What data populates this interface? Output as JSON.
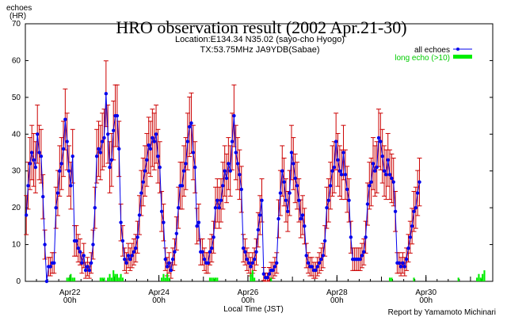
{
  "chart_data": {
    "type": "line",
    "title": "HRO observation result (2002 Apr.21-30)",
    "subtitle_lines": [
      "Location:E134.34 N35.02 (sayo-cho Hyogo)",
      "TX:53.75MHz JA9YDB(Sabae)"
    ],
    "ylabel_lines": [
      "echoes",
      "(HR)"
    ],
    "xlabel": "Local Time (JST)",
    "credit": "Report by Yamamoto Michinari",
    "ylim": [
      0,
      70
    ],
    "yticks": [
      0,
      10,
      20,
      30,
      40,
      50,
      60,
      70
    ],
    "xlim_hours": [
      0,
      252
    ],
    "xticks": [
      {
        "hour": 24,
        "label1": "Apr22",
        "label2": "00h"
      },
      {
        "hour": 72,
        "label1": "Apr24",
        "label2": "00h"
      },
      {
        "hour": 120,
        "label1": "Apr26",
        "label2": "00h"
      },
      {
        "hour": 168,
        "label1": "Apr28",
        "label2": "00h"
      },
      {
        "hour": 216,
        "label1": "Apr30",
        "label2": "00h"
      }
    ],
    "grid": false,
    "legend_position": "top-right",
    "series": [
      {
        "name": "all echoes",
        "color": "#0000ee",
        "error_color": "#cc0000",
        "values": [
          18,
          26,
          32,
          35,
          33,
          31,
          40,
          35,
          34,
          23,
          10,
          0,
          4,
          4,
          5,
          5,
          20,
          24,
          30,
          32,
          36,
          44,
          38,
          30,
          26,
          34,
          11,
          11,
          9,
          8,
          5,
          7,
          3,
          4,
          3,
          5,
          10,
          20,
          34,
          36,
          35,
          38,
          39,
          51,
          40,
          31,
          33,
          41,
          45,
          45,
          36,
          16,
          11,
          6,
          5,
          7,
          6,
          7,
          8,
          9,
          12,
          18,
          24,
          27,
          30,
          33,
          37,
          36,
          39,
          38,
          40,
          34,
          31,
          19,
          16,
          6,
          4,
          5,
          3,
          6,
          8,
          13,
          20,
          26,
          26,
          30,
          32,
          38,
          42,
          43,
          35,
          31,
          15,
          16,
          8,
          8,
          6,
          5,
          5,
          8,
          9,
          12,
          20,
          22,
          20,
          22,
          26,
          30,
          28,
          32,
          30,
          38,
          45,
          35,
          32,
          29,
          25,
          9,
          8,
          6,
          5,
          4,
          5,
          6,
          8,
          14,
          18,
          22,
          2,
          1,
          1,
          2,
          3,
          3,
          4,
          5,
          17,
          24,
          30,
          27,
          22,
          19,
          24,
          35,
          32,
          28,
          26,
          22,
          17,
          18,
          15,
          7,
          5,
          4,
          4,
          3,
          3,
          4,
          5,
          6,
          7,
          11,
          20,
          22,
          26,
          30,
          31,
          38,
          33,
          30,
          29,
          35,
          29,
          25,
          22,
          12,
          6,
          6,
          6,
          6,
          6,
          7,
          8,
          12,
          21,
          26,
          27,
          32,
          30,
          31,
          39,
          38,
          34,
          30,
          29,
          33,
          29,
          28,
          27,
          19,
          5,
          5,
          4,
          5,
          4,
          6,
          9,
          12,
          15,
          19,
          20,
          24,
          27
        ]
      },
      {
        "name": "long echo (>10)",
        "color": "#00ee00",
        "values": [
          0,
          0,
          0,
          0,
          0,
          0,
          0,
          0,
          0,
          0,
          0,
          0,
          0,
          0,
          0,
          0,
          0,
          0,
          0,
          0,
          0,
          0,
          1,
          1,
          2,
          1,
          1,
          0,
          0,
          0,
          0,
          0,
          0,
          0,
          0,
          0,
          0,
          0,
          0,
          0,
          1,
          1,
          1,
          0,
          1,
          2,
          1,
          3,
          2,
          2,
          1,
          2,
          1,
          0,
          0,
          0,
          0,
          0,
          0,
          0,
          0,
          0,
          0,
          0,
          0,
          0,
          0,
          0,
          0,
          0,
          0,
          0,
          0,
          1,
          2,
          1,
          2,
          1,
          0,
          0,
          0,
          0,
          0,
          0,
          0,
          0,
          0,
          0,
          0,
          0,
          0,
          0,
          0,
          0,
          0,
          0,
          0,
          0,
          0,
          1,
          1,
          1,
          1,
          1,
          0,
          0,
          0,
          0,
          0,
          0,
          0,
          0,
          0,
          0,
          0,
          0,
          0,
          0,
          0,
          0,
          0,
          2,
          3,
          1,
          0,
          0,
          0,
          0,
          0,
          0,
          0,
          0,
          1,
          0,
          0,
          0,
          0,
          0,
          0,
          0,
          0,
          0,
          0,
          0,
          0,
          0,
          0,
          0,
          0,
          0,
          0,
          0,
          0,
          0,
          0,
          0,
          0,
          0,
          0,
          0,
          0,
          0,
          0,
          0,
          0,
          0,
          0,
          0,
          0,
          0,
          0,
          0,
          0,
          0,
          0,
          0,
          0,
          0,
          0,
          0,
          0,
          0,
          0,
          0,
          0,
          0,
          0,
          0,
          0,
          0,
          0,
          0,
          0,
          0,
          0,
          0,
          1,
          1,
          0,
          0,
          0,
          0,
          0,
          0,
          0,
          0,
          0,
          0,
          0,
          1,
          0,
          0,
          0,
          0,
          0,
          0,
          0,
          0,
          0,
          0,
          0,
          0,
          0,
          0,
          0,
          0,
          0,
          0,
          0,
          0,
          0,
          0,
          0,
          1,
          0,
          0,
          0,
          0,
          0,
          0,
          0,
          0,
          0,
          1,
          2,
          1,
          2,
          3,
          0,
          0,
          0,
          0,
          0,
          0,
          0,
          0,
          0,
          0,
          0
        ]
      }
    ]
  }
}
